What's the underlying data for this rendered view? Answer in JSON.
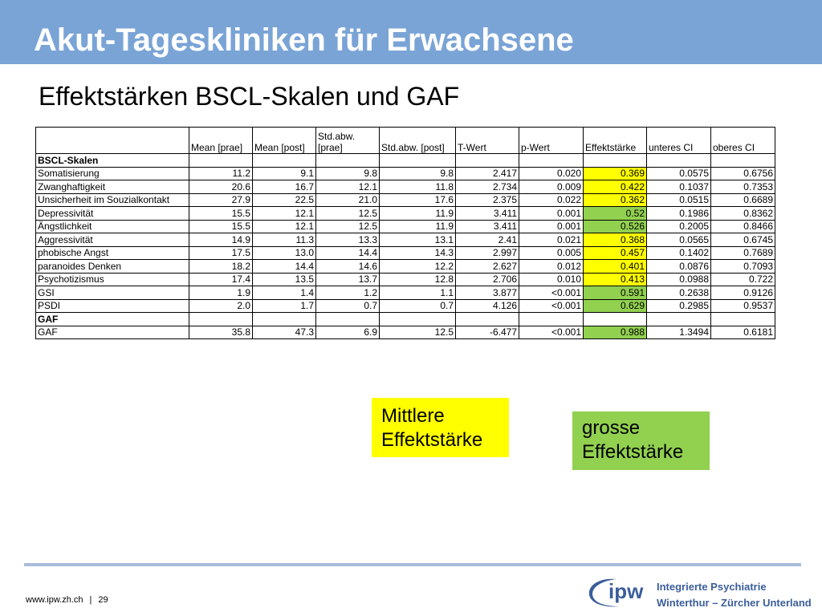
{
  "title": "Akut-Tageskliniken für Erwachsene",
  "subtitle": "Effektstärken BSCL-Skalen und GAF",
  "colors": {
    "title_bar": "#7aa4d6",
    "medium_effect": "#ffff00",
    "large_effect": "#92d050",
    "logo_blue": "#3b5e9b"
  },
  "table": {
    "headers": [
      "",
      "Mean [prae]",
      "Mean [post]",
      "Std.abw. [prae]",
      "Std.abw. [post]",
      "T-Wert",
      "p-Wert",
      "Effektstärke",
      "unteres CI",
      "oberes CI"
    ],
    "sections": [
      {
        "label": "BSCL-Skalen",
        "rows": [
          {
            "name": "Somatisierung",
            "values": [
              "11.2",
              "9.1",
              "9.8",
              "9.8",
              "2.417",
              "0.020",
              "0.369",
              "0.0575",
              "0.6756"
            ],
            "effect": "medium"
          },
          {
            "name": "Zwanghaftigkeit",
            "values": [
              "20.6",
              "16.7",
              "12.1",
              "11.8",
              "2.734",
              "0.009",
              "0.422",
              "0.1037",
              "0.7353"
            ],
            "effect": "medium"
          },
          {
            "name": "Unsicherheit im Souzialkontakt",
            "values": [
              "27.9",
              "22.5",
              "21.0",
              "17.6",
              "2.375",
              "0.022",
              "0.362",
              "0.0515",
              "0.6689"
            ],
            "effect": "medium"
          },
          {
            "name": "Depressivität",
            "values": [
              "15.5",
              "12.1",
              "12.5",
              "11.9",
              "3.411",
              "0.001",
              "0.52",
              "0.1986",
              "0.8362"
            ],
            "effect": "large"
          },
          {
            "name": "Ängstlichkeit",
            "values": [
              "15.5",
              "12.1",
              "12.5",
              "11.9",
              "3.411",
              "0.001",
              "0.526",
              "0.2005",
              "0.8466"
            ],
            "effect": "large"
          },
          {
            "name": "Aggressivität",
            "values": [
              "14.9",
              "11.3",
              "13.3",
              "13.1",
              "2.41",
              "0.021",
              "0.368",
              "0.0565",
              "0.6745"
            ],
            "effect": "medium"
          },
          {
            "name": "phobische Angst",
            "values": [
              "17.5",
              "13.0",
              "14.4",
              "14.3",
              "2.997",
              "0.005",
              "0.457",
              "0.1402",
              "0.7689"
            ],
            "effect": "medium"
          },
          {
            "name": "paranoides Denken",
            "values": [
              "18.2",
              "14.4",
              "14.6",
              "12.2",
              "2.627",
              "0.012",
              "0.401",
              "0.0876",
              "0.7093"
            ],
            "effect": "medium"
          },
          {
            "name": "Psychotizismus",
            "values": [
              "17.4",
              "13.5",
              "13.7",
              "12.8",
              "2.706",
              "0.010",
              "0.413",
              "0.0988",
              "0.722"
            ],
            "effect": "medium"
          },
          {
            "name": "GSI",
            "values": [
              "1.9",
              "1.4",
              "1.2",
              "1.1",
              "3.877",
              "<0.001",
              "0.591",
              "0.2638",
              "0.9126"
            ],
            "effect": "large"
          },
          {
            "name": "PSDI",
            "values": [
              "2.0",
              "1.7",
              "0.7",
              "0.7",
              "4.126",
              "<0.001",
              "0.629",
              "0.2985",
              "0.9537"
            ],
            "effect": "large"
          }
        ]
      },
      {
        "label": "GAF",
        "rows": [
          {
            "name": "GAF",
            "values": [
              "35.8",
              "47.3",
              "6.9",
              "12.5",
              "-6.477",
              "<0.001",
              "0.988",
              "1.3494",
              "0.6181"
            ],
            "effect": "large"
          }
        ]
      }
    ]
  },
  "legend": {
    "medium": "Mittlere Effektstärke",
    "large": "grosse Effektstärke"
  },
  "footer": {
    "url": "www.ipw.zh.ch",
    "separator": "|",
    "page": "29"
  },
  "logo": {
    "text": "ipw",
    "org_line1": "Integrierte Psychiatrie",
    "org_line2": "Winterthur – Zürcher Unterland"
  }
}
